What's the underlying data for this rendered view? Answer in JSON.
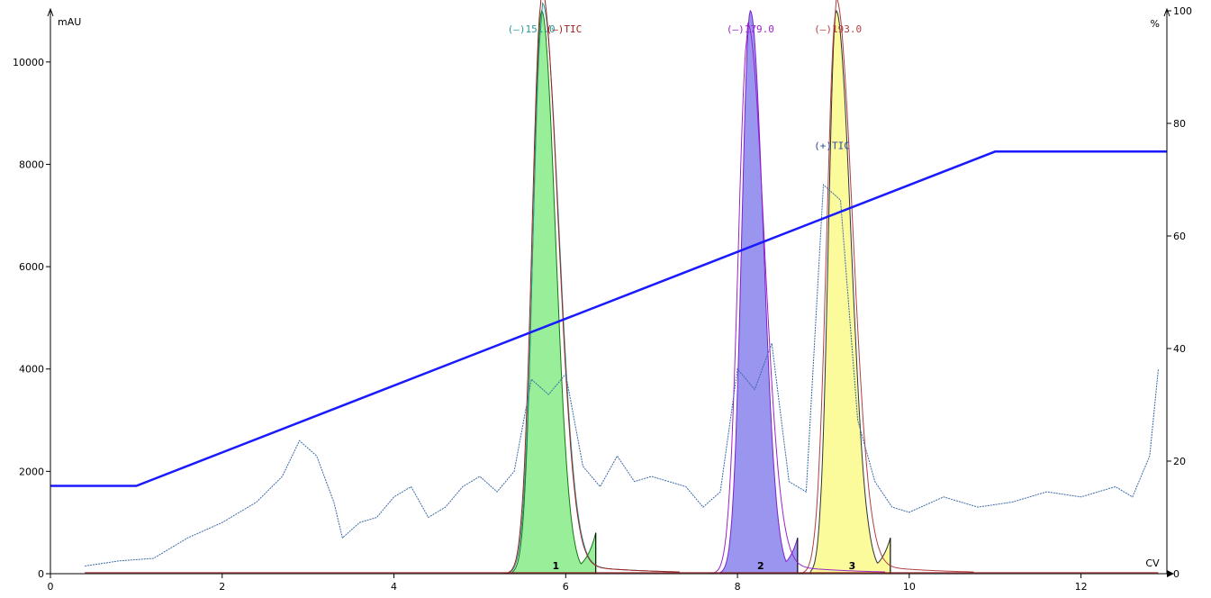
{
  "chart_data": {
    "type": "line",
    "title": "",
    "x_axis": {
      "label": "CV",
      "range": [
        0,
        13
      ],
      "ticks": [
        0,
        2,
        4,
        6,
        8,
        10,
        12
      ]
    },
    "y_left": {
      "label": "mAU",
      "range": [
        0,
        11000
      ],
      "ticks": [
        0,
        2000,
        4000,
        6000,
        8000,
        10000
      ]
    },
    "y_right": {
      "label": "%",
      "range": [
        0,
        100
      ],
      "ticks": [
        0,
        20,
        40,
        60,
        80,
        100
      ]
    },
    "gradient": {
      "color": "#1a1aff",
      "axis": "right",
      "points": [
        [
          0,
          15.6
        ],
        [
          1.0,
          15.6
        ],
        [
          11.0,
          75.0
        ],
        [
          13.0,
          75.0
        ]
      ]
    },
    "uv_peaks": [
      {
        "label": "1",
        "fill": "#99ee99",
        "stroke": "#117711",
        "start": 5.38,
        "apex": 5.72,
        "height": 11000,
        "end": 6.35,
        "left_sigma": 0.1,
        "right_sigma": 0.16,
        "tail_at_end": 800
      },
      {
        "label": "2",
        "fill": "#9a95ee",
        "stroke": "#7a22cc",
        "start": 7.8,
        "apex": 8.15,
        "height": 11000,
        "end": 8.7,
        "left_sigma": 0.1,
        "right_sigma": 0.15,
        "tail_at_end": 700
      },
      {
        "label": "3",
        "fill": "#fbfb9c",
        "stroke": "#333333",
        "start": 8.85,
        "apex": 9.15,
        "height": 11000,
        "end": 9.78,
        "left_sigma": 0.09,
        "right_sigma": 0.17,
        "tail_at_end": 700
      }
    ],
    "ms_traces": [
      {
        "label": "(–)151.0",
        "color": "#2a9a9a",
        "apex": 5.73,
        "height": 10900,
        "label_x": 5.6
      },
      {
        "label": "(–)TIC",
        "color": "#a02020",
        "apex": 5.72,
        "height": 11200,
        "label_x": 5.98
      },
      {
        "label": "(–)179.0",
        "color": "#9922cc",
        "apex": 8.12,
        "height": 10500,
        "label_x": 8.15
      },
      {
        "label": "(–)193.0",
        "color": "#b04040",
        "apex": 9.15,
        "height": 11000,
        "label_x": 9.17
      }
    ],
    "pos_tic": {
      "label": "(+)TIC",
      "color": "#3a6aa8",
      "label_x": 9.1,
      "label_y": 8300,
      "values": [
        [
          0.4,
          150
        ],
        [
          0.8,
          250
        ],
        [
          1.2,
          300
        ],
        [
          1.6,
          700
        ],
        [
          2.0,
          1000
        ],
        [
          2.4,
          1400
        ],
        [
          2.7,
          1900
        ],
        [
          2.9,
          2600
        ],
        [
          3.1,
          2300
        ],
        [
          3.3,
          1400
        ],
        [
          3.4,
          700
        ],
        [
          3.6,
          1000
        ],
        [
          3.8,
          1100
        ],
        [
          4.0,
          1500
        ],
        [
          4.2,
          1700
        ],
        [
          4.4,
          1100
        ],
        [
          4.6,
          1300
        ],
        [
          4.8,
          1700
        ],
        [
          5.0,
          1900
        ],
        [
          5.2,
          1600
        ],
        [
          5.4,
          2000
        ],
        [
          5.6,
          3800
        ],
        [
          5.8,
          3500
        ],
        [
          6.0,
          3900
        ],
        [
          6.2,
          2100
        ],
        [
          6.4,
          1700
        ],
        [
          6.6,
          2300
        ],
        [
          6.8,
          1800
        ],
        [
          7.0,
          1900
        ],
        [
          7.2,
          1800
        ],
        [
          7.4,
          1700
        ],
        [
          7.6,
          1300
        ],
        [
          7.8,
          1600
        ],
        [
          8.0,
          4000
        ],
        [
          8.2,
          3600
        ],
        [
          8.4,
          4500
        ],
        [
          8.6,
          1800
        ],
        [
          8.8,
          1600
        ],
        [
          9.0,
          7600
        ],
        [
          9.2,
          7300
        ],
        [
          9.4,
          3000
        ],
        [
          9.6,
          1800
        ],
        [
          9.8,
          1300
        ],
        [
          10.0,
          1200
        ],
        [
          10.4,
          1500
        ],
        [
          10.8,
          1300
        ],
        [
          11.2,
          1400
        ],
        [
          11.6,
          1600
        ],
        [
          12.0,
          1500
        ],
        [
          12.4,
          1700
        ],
        [
          12.6,
          1500
        ],
        [
          12.8,
          2300
        ],
        [
          12.9,
          4000
        ]
      ]
    },
    "grid": false,
    "legend": "none"
  }
}
